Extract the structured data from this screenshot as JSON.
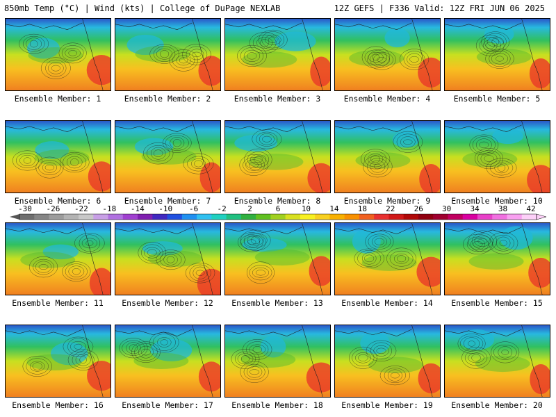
{
  "header": {
    "left_title": "850mb Temp (°C) | Wind (kts) | College of DuPage NEXLAB",
    "right_title": "12Z GEFS | F336 Valid: 12Z FRI JUN 06 2025"
  },
  "members": [
    {
      "label": "Ensemble Member: 1"
    },
    {
      "label": "Ensemble Member: 2"
    },
    {
      "label": "Ensemble Member: 3"
    },
    {
      "label": "Ensemble Member: 4"
    },
    {
      "label": "Ensemble Member: 5"
    },
    {
      "label": "Ensemble Member: 6"
    },
    {
      "label": "Ensemble Member: 7"
    },
    {
      "label": "Ensemble Member: 8"
    },
    {
      "label": "Ensemble Member: 9"
    },
    {
      "label": "Ensemble Member: 10"
    },
    {
      "label": "Ensemble Member: 11"
    },
    {
      "label": "Ensemble Member: 12"
    },
    {
      "label": "Ensemble Member: 13"
    },
    {
      "label": "Ensemble Member: 14"
    },
    {
      "label": "Ensemble Member: 15"
    },
    {
      "label": "Ensemble Member: 16"
    },
    {
      "label": "Ensemble Member: 17"
    },
    {
      "label": "Ensemble Member: 18"
    },
    {
      "label": "Ensemble Member: 19"
    },
    {
      "label": "Ensemble Member: 20"
    }
  ],
  "colorbar": {
    "ticks": [
      "-30",
      "-26",
      "-22",
      "-18",
      "-14",
      "-10",
      "-6",
      "-2",
      "2",
      "6",
      "10",
      "14",
      "18",
      "22",
      "26",
      "30",
      "34",
      "38",
      "42"
    ],
    "colors": [
      "#6e6e6e",
      "#858585",
      "#9c9c9c",
      "#b3b3b3",
      "#c8c8c8",
      "#c8a0e6",
      "#b070e0",
      "#a040d0",
      "#8020b0",
      "#4028c0",
      "#2050e0",
      "#2090f0",
      "#30c0f0",
      "#20d0c0",
      "#20c080",
      "#30b040",
      "#60c020",
      "#a0d020",
      "#d8e020",
      "#f8f020",
      "#f8d020",
      "#f8b000",
      "#f89000",
      "#f06020",
      "#e83030",
      "#d01818",
      "#b00808",
      "#900010",
      "#a00030",
      "#c00060",
      "#d800a0",
      "#e840c8",
      "#f070e0",
      "#f8a0f0",
      "#fcd0f8"
    ]
  }
}
